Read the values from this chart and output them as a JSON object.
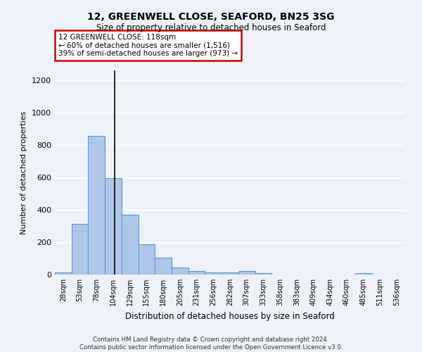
{
  "title1": "12, GREENWELL CLOSE, SEAFORD, BN25 3SG",
  "title2": "Size of property relative to detached houses in Seaford",
  "xlabel": "Distribution of detached houses by size in Seaford",
  "ylabel": "Number of detached properties",
  "bin_labels": [
    "28sqm",
    "53sqm",
    "78sqm",
    "104sqm",
    "129sqm",
    "155sqm",
    "180sqm",
    "205sqm",
    "231sqm",
    "256sqm",
    "282sqm",
    "307sqm",
    "333sqm",
    "358sqm",
    "383sqm",
    "409sqm",
    "434sqm",
    "460sqm",
    "485sqm",
    "511sqm",
    "536sqm"
  ],
  "bar_values": [
    15,
    315,
    855,
    595,
    370,
    185,
    105,
    45,
    20,
    15,
    15,
    20,
    8,
    0,
    0,
    0,
    0,
    0,
    10,
    0,
    0
  ],
  "bar_color": "#aec6e8",
  "bar_edge_color": "#5b9bd5",
  "ylim": [
    0,
    1260
  ],
  "yticks": [
    0,
    200,
    400,
    600,
    800,
    1000,
    1200
  ],
  "property_line_x": 3.6,
  "annotation_text": "12 GREENWELL CLOSE: 118sqm\n← 60% of detached houses are smaller (1,516)\n39% of semi-detached houses are larger (973) →",
  "annotation_box_color": "#ffffff",
  "annotation_box_edge": "#cc0000",
  "footer_line1": "Contains HM Land Registry data © Crown copyright and database right 2024.",
  "footer_line2": "Contains public sector information licensed under the Open Government Licence v3.0.",
  "background_color": "#eef2f8",
  "grid_color": "#ffffff"
}
